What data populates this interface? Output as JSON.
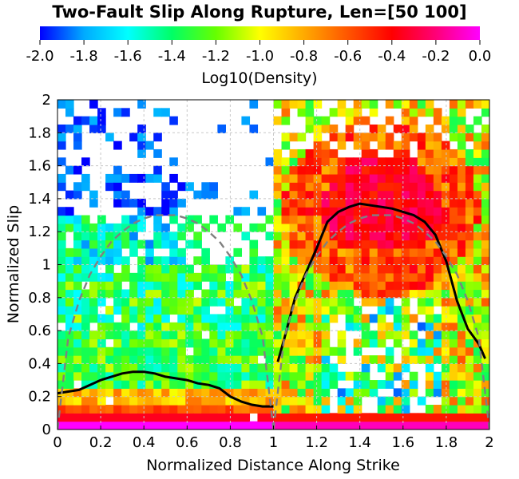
{
  "chart_data": {
    "type": "heatmap",
    "title": "Two-Fault Slip Along Rupture, Len=[50 100]",
    "xlabel": "Normalized Distance Along Strike",
    "ylabel": "Normalized Slip",
    "xlim": [
      0,
      2
    ],
    "ylim": [
      0,
      2
    ],
    "x_ticks": [
      "0",
      "0.2",
      "0.4",
      "0.6",
      "0.8",
      "1",
      "1.2",
      "1.4",
      "1.6",
      "1.8",
      "2"
    ],
    "y_ticks": [
      "0",
      "0.2",
      "0.4",
      "0.6",
      "0.8",
      "1",
      "1.2",
      "1.4",
      "1.6",
      "1.8",
      "2"
    ],
    "grid": true,
    "colorbar": {
      "label": "Log10(Density)",
      "range": [
        -2.0,
        0.0
      ],
      "ticks": [
        "-2.0",
        "-1.8",
        "-1.6",
        "-1.4",
        "-1.2",
        "-1.0",
        "-0.8",
        "-0.6",
        "-0.4",
        "-0.2",
        "0.0"
      ],
      "position": "top",
      "colormap": [
        "#0000ff",
        "#00aaff",
        "#00ffff",
        "#00ff66",
        "#66ff00",
        "#ffff00",
        "#ffaa00",
        "#ff5500",
        "#ff0000",
        "#ff0077",
        "#ff00ff"
      ]
    },
    "series": [
      {
        "style": "solid",
        "color": "#000000",
        "x": [
          0.0,
          0.05,
          0.1,
          0.15,
          0.2,
          0.25,
          0.3,
          0.35,
          0.4,
          0.45,
          0.5,
          0.55,
          0.6,
          0.65,
          0.7,
          0.75,
          0.8,
          0.85,
          0.9,
          0.95,
          1.0
        ],
        "y": [
          0.22,
          0.23,
          0.24,
          0.27,
          0.3,
          0.32,
          0.34,
          0.35,
          0.35,
          0.34,
          0.32,
          0.31,
          0.3,
          0.28,
          0.27,
          0.25,
          0.2,
          0.17,
          0.15,
          0.14,
          0.14
        ]
      },
      {
        "style": "solid",
        "color": "#000000",
        "x": [
          1.02,
          1.05,
          1.1,
          1.15,
          1.2,
          1.25,
          1.3,
          1.35,
          1.4,
          1.45,
          1.5,
          1.55,
          1.6,
          1.65,
          1.7,
          1.75,
          1.8,
          1.85,
          1.9,
          1.95,
          1.98
        ],
        "y": [
          0.41,
          0.55,
          0.8,
          0.95,
          1.1,
          1.26,
          1.32,
          1.35,
          1.37,
          1.36,
          1.35,
          1.34,
          1.32,
          1.3,
          1.26,
          1.18,
          1.02,
          0.78,
          0.61,
          0.52,
          0.43
        ]
      },
      {
        "style": "dashed",
        "color": "#808080",
        "x": [
          0.0,
          0.05,
          0.1,
          0.15,
          0.2,
          0.25,
          0.3,
          0.35,
          0.4,
          0.45,
          0.5,
          0.55,
          0.6,
          0.65,
          0.7,
          0.75,
          0.8,
          0.85,
          0.9,
          0.95,
          1.0
        ],
        "y": [
          0.0,
          0.56,
          0.78,
          0.94,
          1.05,
          1.14,
          1.2,
          1.25,
          1.28,
          1.3,
          1.3,
          1.3,
          1.28,
          1.25,
          1.2,
          1.14,
          1.05,
          0.94,
          0.78,
          0.56,
          0.0
        ]
      },
      {
        "style": "dashed",
        "color": "#808080",
        "x": [
          1.0,
          1.05,
          1.1,
          1.15,
          1.2,
          1.25,
          1.3,
          1.35,
          1.4,
          1.45,
          1.5,
          1.55,
          1.6,
          1.65,
          1.7,
          1.75,
          1.8,
          1.85,
          1.9,
          1.95,
          2.0
        ],
        "y": [
          0.0,
          0.56,
          0.78,
          0.94,
          1.05,
          1.14,
          1.2,
          1.25,
          1.28,
          1.3,
          1.3,
          1.3,
          1.28,
          1.25,
          1.2,
          1.14,
          1.05,
          0.94,
          0.78,
          0.56,
          0.0
        ]
      }
    ],
    "heatmap_grid": {
      "x_bins": 54,
      "y_bins": 40,
      "x_range": [
        0,
        2
      ],
      "y_range": [
        0,
        2
      ]
    }
  }
}
